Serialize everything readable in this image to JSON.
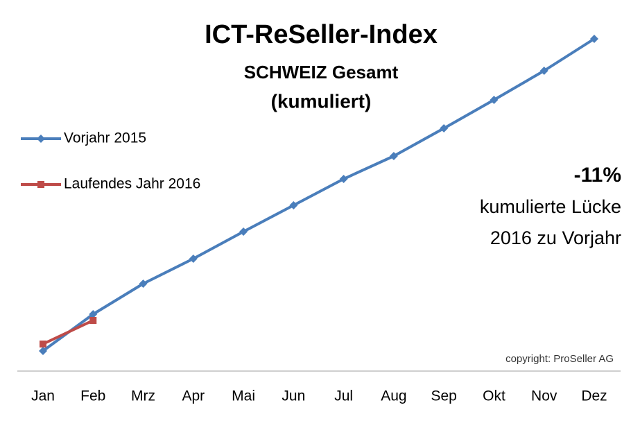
{
  "chart_data": {
    "type": "line",
    "title": "ICT-ReSeller-Index",
    "subtitle": [
      "SCHWEIZ Gesamt",
      "(kumuliert)"
    ],
    "categories": [
      "Jan",
      "Feb",
      "Mrz",
      "Apr",
      "Mai",
      "Jun",
      "Jul",
      "Aug",
      "Sep",
      "Okt",
      "Nov",
      "Dez"
    ],
    "series": [
      {
        "name": "Vorjahr 2015",
        "color": "#4a7ebb",
        "marker": "diamond",
        "values": [
          29,
          82,
          126,
          162,
          201,
          239,
          277,
          310,
          350,
          391,
          433,
          479
        ]
      },
      {
        "name": "Laufendes Jahr 2016",
        "color": "#be4b48",
        "marker": "square",
        "values": [
          39,
          73,
          null,
          null,
          null,
          null,
          null,
          null,
          null,
          null,
          null,
          null
        ]
      }
    ],
    "ylim": [
      0,
      500
    ],
    "legend": "top-left",
    "annotations": [
      "-11%",
      "kumulierte Lücke",
      "2016 zu Vorjahr"
    ],
    "copyright": "copyright: ProSeller AG"
  }
}
